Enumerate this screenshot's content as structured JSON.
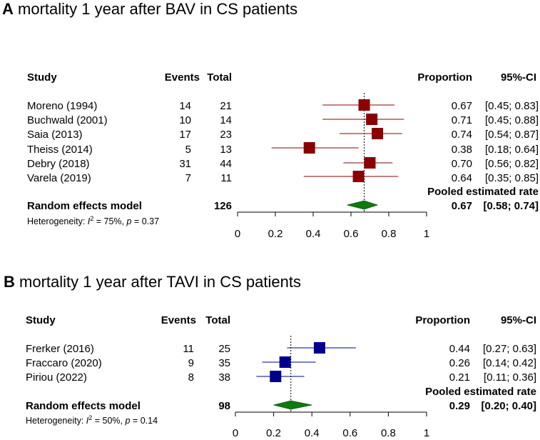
{
  "chart_data": [
    {
      "type": "forest",
      "panel": "A",
      "title": "mortality 1 year after BAV in CS patients",
      "headers": {
        "study": "Study",
        "events": "Events",
        "total": "Total",
        "proportion": "Proportion",
        "ci": "95%-CI"
      },
      "studies": [
        {
          "name": "Moreno (1994)",
          "events": "14",
          "total": "21",
          "prop": 0.67,
          "lo": 0.45,
          "hi": 0.83,
          "prop_text": "0.67",
          "ci_text": "[0.45; 0.83]"
        },
        {
          "name": "Buchwald (2001)",
          "events": "10",
          "total": "14",
          "prop": 0.71,
          "lo": 0.45,
          "hi": 0.88,
          "prop_text": "0.71",
          "ci_text": "[0.45; 0.88]"
        },
        {
          "name": "Saia (2013)",
          "events": "17",
          "total": "23",
          "prop": 0.74,
          "lo": 0.54,
          "hi": 0.87,
          "prop_text": "0.74",
          "ci_text": "[0.54; 0.87]"
        },
        {
          "name": "Theiss (2014)",
          "events": "5",
          "total": "13",
          "prop": 0.38,
          "lo": 0.18,
          "hi": 0.64,
          "prop_text": "0.38",
          "ci_text": "[0.18; 0.64]"
        },
        {
          "name": "Debry (2018)",
          "events": "31",
          "total": "44",
          "prop": 0.7,
          "lo": 0.56,
          "hi": 0.82,
          "prop_text": "0.70",
          "ci_text": "[0.56; 0.82]"
        },
        {
          "name": "Varela (2019)",
          "events": "7",
          "total": "11",
          "prop": 0.64,
          "lo": 0.35,
          "hi": 0.85,
          "prop_text": "0.64",
          "ci_text": "[0.35; 0.85]"
        }
      ],
      "pooled": {
        "label": "Random effects model",
        "total": "126",
        "rate_label": "Pooled estimated rate",
        "prop": 0.67,
        "lo": 0.58,
        "hi": 0.74,
        "prop_text": "0.67",
        "ci_text": "[0.58; 0.74]"
      },
      "heterogeneity": {
        "prefix": "Heterogeneity: ",
        "i2_letter": "I",
        "i2_sup": "2",
        "i2_value": " = 75%, ",
        "p_letter": "p",
        "p_value": " = 0.37"
      },
      "xaxis": {
        "min": 0,
        "max": 1,
        "ticks": [
          "0",
          "0.2",
          "0.4",
          "0.6",
          "0.8",
          "1"
        ]
      },
      "square_color": "#8b0000",
      "line_color": "#8b0000",
      "diamond_color": "#0f7a0f"
    },
    {
      "type": "forest",
      "panel": "B",
      "title": "mortality 1 year after TAVI in CS patients",
      "headers": {
        "study": "Study",
        "events": "Events",
        "total": "Total",
        "proportion": "Proportion",
        "ci": "95%-CI"
      },
      "studies": [
        {
          "name": "Frerker (2016)",
          "events": "11",
          "total": "25",
          "prop": 0.44,
          "lo": 0.27,
          "hi": 0.63,
          "prop_text": "0.44",
          "ci_text": "[0.27; 0.63]"
        },
        {
          "name": "Fraccaro (2020)",
          "events": "9",
          "total": "35",
          "prop": 0.26,
          "lo": 0.14,
          "hi": 0.42,
          "prop_text": "0.26",
          "ci_text": "[0.14; 0.42]"
        },
        {
          "name": "Piriou (2022)",
          "events": "8",
          "total": "38",
          "prop": 0.21,
          "lo": 0.11,
          "hi": 0.36,
          "prop_text": "0.21",
          "ci_text": "[0.11; 0.36]"
        }
      ],
      "pooled": {
        "label": "Random effects model",
        "total": "98",
        "rate_label": "Pooled estimated rate",
        "prop": 0.29,
        "lo": 0.2,
        "hi": 0.4,
        "prop_text": "0.29",
        "ci_text": "[0.20; 0.40]"
      },
      "heterogeneity": {
        "prefix": "Heterogeneity: ",
        "i2_letter": "I",
        "i2_sup": "2",
        "i2_value": " = 50%, ",
        "p_letter": "p",
        "p_value": " = 0.14"
      },
      "xaxis": {
        "min": 0,
        "max": 1,
        "ticks": [
          "0",
          "0.2",
          "0.4",
          "0.6",
          "0.8",
          "1"
        ]
      },
      "square_color": "#00008b",
      "line_color": "#00008b",
      "diamond_color": "#0f7a0f"
    }
  ]
}
